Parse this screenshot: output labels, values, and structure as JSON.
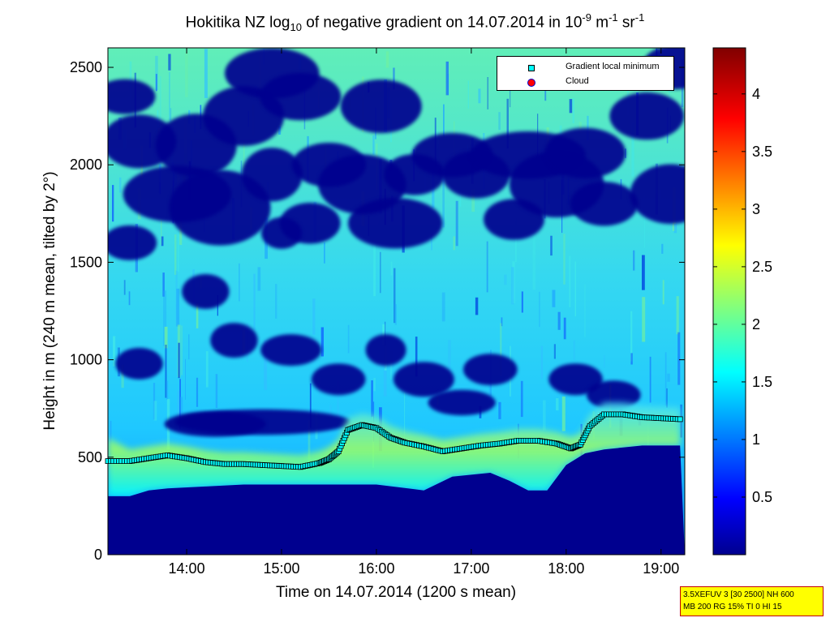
{
  "title": {
    "prefix": "Hokitika NZ log",
    "sub": "10",
    "middle": " of negative gradient on 14.07.2014 in 10",
    "sup1": "-9",
    "unit1": " m",
    "sup2": "-1",
    "unit2": " sr",
    "sup3": "-1"
  },
  "legend": {
    "gradient_label": "Gradient local minimum",
    "cloud_label": "Cloud"
  },
  "infobox": {
    "line1": "3.5XEFUV 3 [30 2500] NH 600",
    "line2": "MB 200 RG 15% TI 0 HI 15"
  },
  "colors": {
    "background_low": "#00008f",
    "jet_colormap": [
      "#00008f",
      "#0000ff",
      "#0080ff",
      "#00ffff",
      "#80ff80",
      "#ffff00",
      "#ff8000",
      "#ff0000",
      "#800000"
    ],
    "gradient_marker_fill": "#00ffff",
    "cloud_marker_fill": "#ff0000",
    "cloud_marker_edge": "#0000cc"
  },
  "chart_data": {
    "type": "heatmap",
    "xlabel": "Time on 14.07.2014 (1200 s mean)",
    "ylabel": "Height in m (240 m mean, tilted by 2°)",
    "xlim": [
      13.17,
      19.25
    ],
    "ylim": [
      0,
      2600
    ],
    "x_ticks": [
      14,
      15,
      16,
      17,
      18,
      19
    ],
    "x_tick_labels": [
      "14:00",
      "15:00",
      "16:00",
      "17:00",
      "18:00",
      "19:00"
    ],
    "y_ticks": [
      0,
      500,
      1000,
      1500,
      2000,
      2500
    ],
    "y_tick_labels": [
      "0",
      "500",
      "1000",
      "1500",
      "2000",
      "2500"
    ],
    "colorbar": {
      "clim": [
        0,
        4.4
      ],
      "ticks": [
        0.5,
        1,
        1.5,
        2,
        2.5,
        3,
        3.5,
        4
      ],
      "tick_labels": [
        "0.5",
        "1",
        "1.5",
        "2",
        "2.5",
        "3",
        "3.5",
        "4"
      ]
    },
    "series": [
      {
        "name": "Gradient local minimum",
        "x": [
          13.17,
          13.4,
          13.6,
          13.8,
          14.0,
          14.2,
          14.4,
          14.6,
          14.8,
          15.0,
          15.2,
          15.4,
          15.5,
          15.6,
          15.7,
          15.85,
          16.0,
          16.15,
          16.3,
          16.5,
          16.7,
          16.9,
          17.1,
          17.3,
          17.5,
          17.7,
          17.9,
          18.05,
          18.15,
          18.25,
          18.4,
          18.6,
          18.8,
          19.0,
          19.2
        ],
        "y": [
          480,
          480,
          495,
          510,
          495,
          475,
          465,
          465,
          460,
          455,
          450,
          470,
          490,
          530,
          640,
          665,
          650,
          600,
          575,
          555,
          530,
          545,
          560,
          570,
          585,
          585,
          570,
          545,
          565,
          660,
          720,
          720,
          705,
          700,
          695
        ]
      },
      {
        "name": "Cloud",
        "x": [],
        "y": []
      }
    ],
    "field_description_layers": {
      "low_boundary_height": [
        300,
        300,
        330,
        340,
        350,
        360,
        360,
        360,
        360,
        360,
        330,
        400,
        420,
        380,
        330,
        330,
        460,
        520,
        540,
        560,
        560
      ],
      "low_boundary_x": [
        13.17,
        13.4,
        13.6,
        13.8,
        14.2,
        14.6,
        15.0,
        15.4,
        15.7,
        16.0,
        16.5,
        16.8,
        17.2,
        17.4,
        17.6,
        17.8,
        18.0,
        18.2,
        18.4,
        18.8,
        19.2
      ]
    }
  }
}
